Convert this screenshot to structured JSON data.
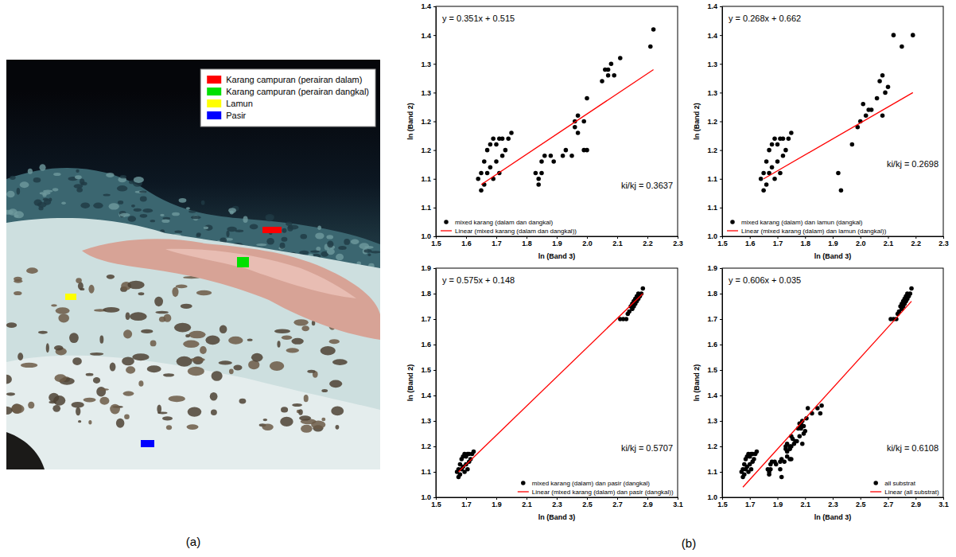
{
  "chart_data": [
    {
      "type": "scatter",
      "x_label": "ln (Band 3)",
      "y_label": "ln (Band 2)",
      "annotations": [
        "y = 0.351x + 0.515",
        "ki/kj = 0.3637"
      ],
      "xlim": [
        1.5,
        2.3
      ],
      "xticks": [
        1.5,
        1.6,
        1.7,
        1.8,
        1.9,
        {
          "value": 2.0,
          "label": "2.0"
        },
        2.1,
        2.2,
        2.3
      ],
      "ylim": [
        1.0,
        1.4
      ],
      "yticks": [
        {
          "value": 1.0,
          "label": "1.0"
        },
        {
          "value": 1.05,
          "label": "1.1"
        },
        1.1,
        {
          "value": 1.15,
          "label": "1.2"
        },
        1.2,
        {
          "value": 1.25,
          "label": "1.3"
        },
        1.3,
        {
          "value": 1.35,
          "label": "1.4"
        },
        1.4
      ],
      "legend": "lower left",
      "series": [
        {
          "name": "mixed karang (dalam dan dangkal)",
          "type": "scatter",
          "color": "#000000",
          "marker": "circle",
          "x": [
            1.64,
            1.65,
            1.65,
            1.66,
            1.66,
            1.67,
            1.67,
            1.68,
            1.68,
            1.69,
            1.69,
            1.7,
            1.7,
            1.71,
            1.71,
            1.72,
            1.72,
            1.73,
            1.74,
            1.75,
            1.83,
            1.84,
            1.84,
            1.85,
            1.85,
            1.86,
            1.88,
            1.89,
            1.92,
            1.93,
            1.95,
            1.96,
            1.96,
            1.97,
            1.97,
            1.99,
            1.99,
            2.0,
            2.0,
            2.05,
            2.06,
            2.07,
            2.07,
            2.08,
            2.09,
            2.11,
            2.21,
            2.22
          ],
          "values": [
            1.1,
            1.08,
            1.11,
            1.09,
            1.13,
            1.11,
            1.15,
            1.12,
            1.16,
            1.1,
            1.17,
            1.13,
            1.16,
            1.11,
            1.17,
            1.14,
            1.17,
            1.15,
            1.17,
            1.18,
            1.11,
            1.1,
            1.09,
            1.11,
            1.13,
            1.14,
            1.14,
            1.13,
            1.14,
            1.15,
            1.14,
            1.2,
            1.19,
            1.21,
            1.18,
            1.15,
            1.2,
            1.15,
            1.24,
            1.27,
            1.29,
            1.29,
            1.28,
            1.3,
            1.28,
            1.31,
            1.33,
            1.36
          ]
        },
        {
          "name": "Linear (mixed karang (dalam dan dangkal))",
          "type": "line",
          "color": "#ff0000",
          "line_style": "solid",
          "x": [
            1.65,
            2.22
          ],
          "values": [
            1.09,
            1.29
          ]
        }
      ]
    },
    {
      "type": "scatter",
      "x_label": "ln (Band 3)",
      "y_label": "ln (Band 2)",
      "annotations": [
        "y = 0.268x + 0.662",
        "ki/kj = 0.2698"
      ],
      "xlim": [
        1.5,
        2.3
      ],
      "xticks": [
        1.5,
        1.6,
        1.7,
        1.8,
        1.9,
        {
          "value": 2.0,
          "label": "2.0"
        },
        2.1,
        2.2,
        2.3
      ],
      "ylim": [
        1.0,
        1.4
      ],
      "yticks": [
        {
          "value": 1.0,
          "label": "1.0"
        },
        {
          "value": 1.05,
          "label": "1.1"
        },
        1.1,
        {
          "value": 1.15,
          "label": "1.2"
        },
        1.2,
        {
          "value": 1.25,
          "label": "1.3"
        },
        1.3,
        {
          "value": 1.35,
          "label": "1.4"
        },
        1.4
      ],
      "legend": "lower left",
      "series": [
        {
          "name": "mixed karang (dalam) dan lamun (dangkal)",
          "type": "scatter",
          "color": "#000000",
          "marker": "circle",
          "x": [
            1.64,
            1.65,
            1.65,
            1.66,
            1.66,
            1.67,
            1.67,
            1.68,
            1.68,
            1.69,
            1.69,
            1.7,
            1.7,
            1.71,
            1.71,
            1.72,
            1.72,
            1.73,
            1.74,
            1.75,
            1.92,
            1.93,
            1.97,
            1.99,
            2.0,
            2.01,
            2.02,
            2.03,
            2.04,
            2.06,
            2.07,
            2.08,
            2.08,
            2.09,
            2.1,
            2.12,
            2.15,
            2.19
          ],
          "values": [
            1.1,
            1.08,
            1.11,
            1.09,
            1.13,
            1.11,
            1.15,
            1.12,
            1.16,
            1.1,
            1.17,
            1.13,
            1.16,
            1.11,
            1.17,
            1.14,
            1.17,
            1.15,
            1.17,
            1.18,
            1.11,
            1.08,
            1.16,
            1.19,
            1.2,
            1.23,
            1.21,
            1.22,
            1.22,
            1.24,
            1.27,
            1.28,
            1.21,
            1.25,
            1.26,
            1.35,
            1.33,
            1.35
          ]
        },
        {
          "name": "Linear (mixed karang (dalam) dan lamun (dangkal))",
          "type": "line",
          "color": "#ff0000",
          "line_style": "solid",
          "x": [
            1.65,
            2.19
          ],
          "values": [
            1.1,
            1.25
          ]
        }
      ]
    },
    {
      "type": "scatter",
      "x_label": "ln (Band 3)",
      "y_label": "ln (Band 2)",
      "annotations": [
        "y = 0.575x + 0.148",
        "ki/kj = 0.5707"
      ],
      "xlim": [
        1.5,
        3.1
      ],
      "xticks": [
        1.5,
        1.7,
        1.9,
        2.1,
        2.3,
        2.5,
        2.7,
        2.9,
        3.1
      ],
      "ylim": [
        1.0,
        1.9
      ],
      "yticks": [
        {
          "value": 1.0,
          "label": "1.0"
        },
        1.1,
        1.2,
        1.3,
        1.4,
        1.5,
        1.6,
        1.7,
        1.8,
        1.9
      ],
      "legend": "lower right",
      "series": [
        {
          "name": "mixed karang (dalam) dan pasir (dangkal)",
          "type": "scatter",
          "color": "#000000",
          "marker": "circle",
          "x": [
            1.64,
            1.65,
            1.65,
            1.66,
            1.66,
            1.67,
            1.67,
            1.68,
            1.68,
            1.69,
            1.69,
            1.7,
            1.7,
            1.71,
            1.71,
            1.72,
            1.72,
            1.73,
            1.74,
            1.75,
            2.72,
            2.74,
            2.76,
            2.77,
            2.78,
            2.79,
            2.8,
            2.8,
            2.81,
            2.81,
            2.82,
            2.82,
            2.83,
            2.83,
            2.84,
            2.84,
            2.85,
            2.86,
            2.87
          ],
          "values": [
            1.1,
            1.08,
            1.11,
            1.09,
            1.13,
            1.11,
            1.15,
            1.12,
            1.16,
            1.1,
            1.17,
            1.13,
            1.16,
            1.11,
            1.17,
            1.14,
            1.17,
            1.15,
            1.17,
            1.18,
            1.7,
            1.7,
            1.7,
            1.72,
            1.73,
            1.75,
            1.74,
            1.76,
            1.77,
            1.75,
            1.78,
            1.76,
            1.79,
            1.77,
            1.78,
            1.8,
            1.79,
            1.8,
            1.82
          ]
        },
        {
          "name": "Linear (mixed karang (dalam) dan pasir (dangkal))",
          "type": "line",
          "color": "#ff0000",
          "line_style": "solid",
          "x": [
            1.65,
            2.87
          ],
          "values": [
            1.1,
            1.8
          ]
        }
      ]
    },
    {
      "type": "scatter",
      "x_label": "ln (Band 3)",
      "y_label": "ln (Band 2)",
      "annotations": [
        "y = 0.606x + 0.035",
        "ki/kj = 0.6108"
      ],
      "xlim": [
        1.5,
        3.1
      ],
      "xticks": [
        1.5,
        1.7,
        1.9,
        2.1,
        2.3,
        2.5,
        2.7,
        2.9,
        3.1
      ],
      "ylim": [
        1.0,
        1.9
      ],
      "yticks": [
        {
          "value": 1.0,
          "label": "1.0"
        },
        1.1,
        1.2,
        1.3,
        1.4,
        1.5,
        1.6,
        1.7,
        1.8,
        1.9
      ],
      "legend": "lower right",
      "series": [
        {
          "name": "all substrat",
          "type": "scatter",
          "color": "#000000",
          "marker": "circle",
          "x": [
            1.64,
            1.65,
            1.65,
            1.66,
            1.66,
            1.67,
            1.67,
            1.68,
            1.68,
            1.69,
            1.69,
            1.7,
            1.7,
            1.71,
            1.71,
            1.72,
            1.72,
            1.73,
            1.74,
            1.75,
            1.83,
            1.84,
            1.84,
            1.85,
            1.85,
            1.86,
            1.88,
            1.89,
            1.92,
            1.93,
            1.95,
            1.96,
            1.96,
            1.97,
            1.97,
            1.99,
            1.99,
            2.0,
            2.0,
            2.05,
            2.06,
            2.07,
            2.07,
            2.08,
            2.09,
            2.11,
            2.21,
            2.22,
            1.92,
            1.93,
            1.97,
            1.99,
            2.0,
            2.01,
            2.02,
            2.03,
            2.04,
            2.06,
            2.07,
            2.08,
            2.08,
            2.09,
            2.1,
            2.12,
            2.15,
            2.19,
            2.72,
            2.74,
            2.76,
            2.77,
            2.78,
            2.79,
            2.8,
            2.8,
            2.81,
            2.81,
            2.82,
            2.82,
            2.83,
            2.83,
            2.84,
            2.84,
            2.85,
            2.86,
            2.87
          ],
          "values": [
            1.1,
            1.08,
            1.11,
            1.09,
            1.13,
            1.11,
            1.15,
            1.12,
            1.16,
            1.1,
            1.17,
            1.13,
            1.16,
            1.11,
            1.17,
            1.14,
            1.17,
            1.15,
            1.17,
            1.18,
            1.11,
            1.1,
            1.09,
            1.11,
            1.13,
            1.14,
            1.14,
            1.13,
            1.14,
            1.15,
            1.14,
            1.2,
            1.19,
            1.21,
            1.18,
            1.15,
            1.2,
            1.15,
            1.24,
            1.27,
            1.29,
            1.29,
            1.28,
            1.3,
            1.28,
            1.31,
            1.33,
            1.36,
            1.11,
            1.08,
            1.16,
            1.19,
            1.2,
            1.23,
            1.21,
            1.22,
            1.22,
            1.24,
            1.27,
            1.28,
            1.21,
            1.25,
            1.26,
            1.35,
            1.33,
            1.35,
            1.7,
            1.7,
            1.7,
            1.72,
            1.73,
            1.75,
            1.74,
            1.76,
            1.77,
            1.75,
            1.78,
            1.76,
            1.79,
            1.77,
            1.78,
            1.8,
            1.79,
            1.8,
            1.82
          ]
        },
        {
          "name": "Linear (all substrat)",
          "type": "line",
          "color": "#ff0000",
          "line_style": "solid",
          "x": [
            1.65,
            2.87
          ],
          "values": [
            1.04,
            1.77
          ]
        }
      ]
    }
  ],
  "image": {
    "label": "(a)",
    "legend": [
      {
        "name": "Karang campuran (perairan dalam)",
        "color": "#ff0000"
      },
      {
        "name": "Karang campuran (perairan dangkal)",
        "color": "#00e000"
      },
      {
        "name": "Lamun",
        "color": "#ffff00"
      },
      {
        "name": "Pasir",
        "color": "#0000ff"
      }
    ]
  },
  "plots_label": "(b)"
}
